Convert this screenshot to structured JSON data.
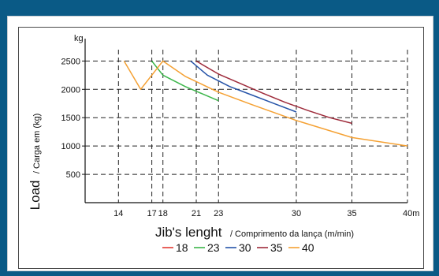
{
  "chart_data": {
    "type": "line",
    "ylabel_main": "Load",
    "ylabel_sub": "/ Carga em (kg)",
    "xlabel_main": "Jib's lenght",
    "xlabel_sub": "/ Comprimento da lança (m/min)",
    "y_unit": "kg",
    "x_unit": "m",
    "yticks": [
      500,
      1000,
      1500,
      2000,
      2500
    ],
    "xticks": [
      14,
      17,
      18,
      21,
      23,
      30,
      35,
      40
    ],
    "xtick_labels": [
      "14",
      "17",
      "18",
      "21",
      "23",
      "30",
      "35",
      "40"
    ],
    "ylim": [
      0,
      2700
    ],
    "xlim": [
      11,
      40
    ],
    "grid": true,
    "legend_position": "bottom",
    "series": [
      {
        "name": "18",
        "color": "#e23b33",
        "x": [],
        "y": []
      },
      {
        "name": "23",
        "color": "#3cb64a",
        "x": [
          17,
          18,
          20,
          23
        ],
        "y": [
          2500,
          2250,
          2050,
          1800
        ]
      },
      {
        "name": "30",
        "color": "#2553a8",
        "x": [
          20.5,
          22,
          24,
          26,
          28,
          30
        ],
        "y": [
          2500,
          2250,
          2050,
          1900,
          1750,
          1600
        ]
      },
      {
        "name": "35",
        "color": "#9e2a3a",
        "x": [
          21,
          23,
          25,
          27,
          29,
          31,
          33,
          35
        ],
        "y": [
          2500,
          2270,
          2100,
          1930,
          1770,
          1630,
          1500,
          1400
        ]
      },
      {
        "name": "40",
        "color": "#f5a133",
        "x": [
          14.5,
          16,
          18,
          20,
          23,
          26,
          30,
          35,
          40
        ],
        "y": [
          2500,
          2000,
          2500,
          2230,
          1950,
          1730,
          1450,
          1150,
          1000
        ]
      }
    ]
  }
}
